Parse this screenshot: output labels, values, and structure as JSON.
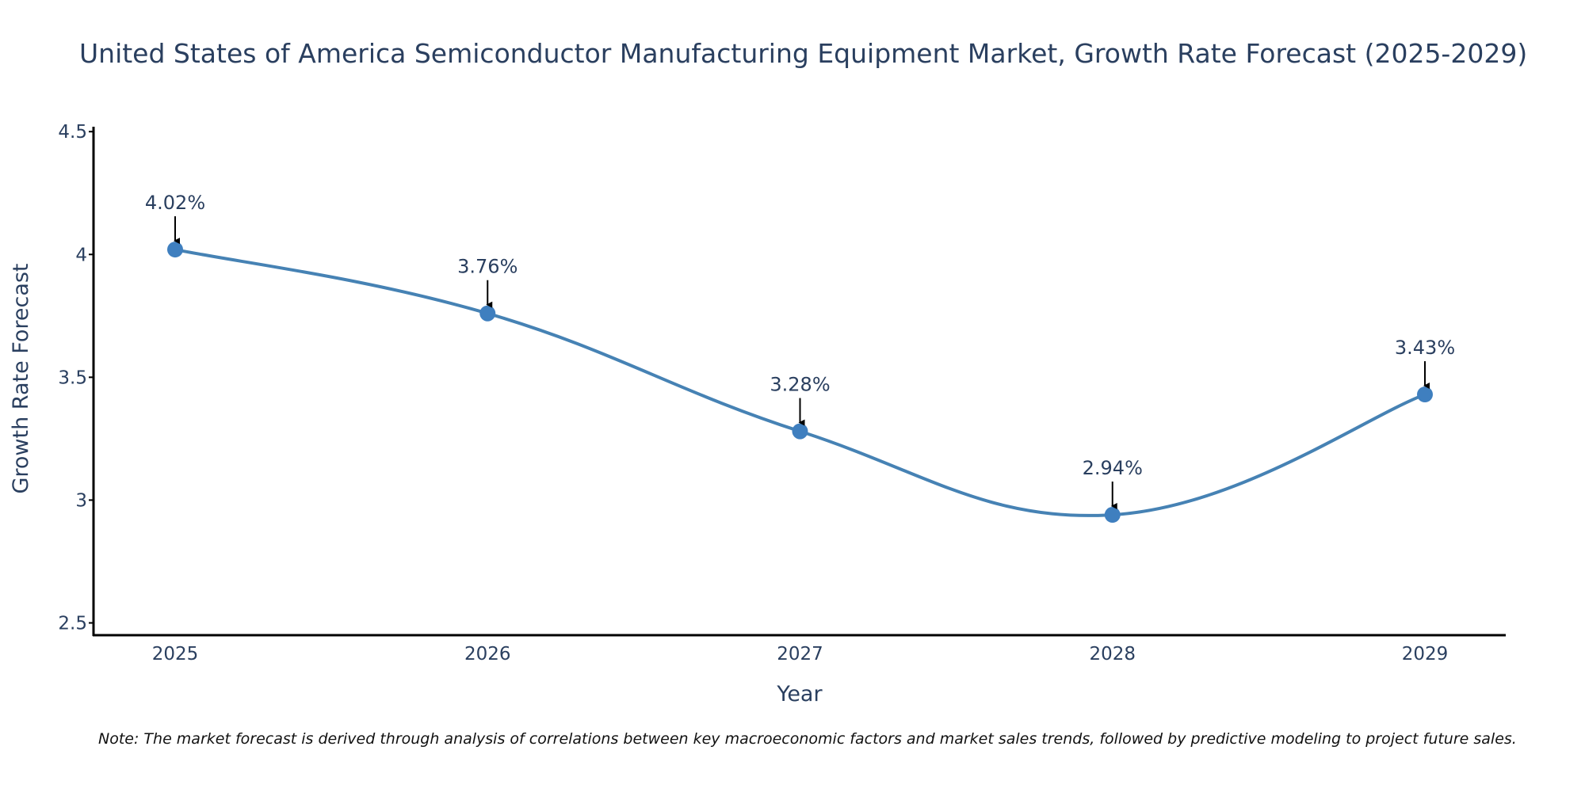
{
  "chart_data": {
    "type": "line",
    "title": "United States of America Semiconductor Manufacturing Equipment Market, Growth Rate Forecast (2025-2029)",
    "xlabel": "Year",
    "ylabel": "Growth Rate Forecast",
    "categories": [
      "2025",
      "2026",
      "2027",
      "2028",
      "2029"
    ],
    "values": [
      4.02,
      3.76,
      3.28,
      2.94,
      3.43
    ],
    "data_labels": [
      "4.02%",
      "3.76%",
      "3.28%",
      "2.94%",
      "3.43%"
    ],
    "ylim": [
      2.45,
      4.52
    ],
    "yticks": [
      2.5,
      3,
      3.5,
      4,
      4.5
    ],
    "ytick_labels": [
      "2.5",
      "3",
      "3.5",
      "4",
      "4.5"
    ],
    "grid": false,
    "line_shape": "spline",
    "colors": {
      "line": "#4682b4",
      "marker": "#3f7fbf",
      "text": "#2a3f5f",
      "axis": "#000000",
      "arrow": "#000000"
    }
  },
  "note": "Note: The market forecast is derived through analysis of correlations between key macroeconomic factors and market sales trends, followed by predictive modeling to project future sales."
}
